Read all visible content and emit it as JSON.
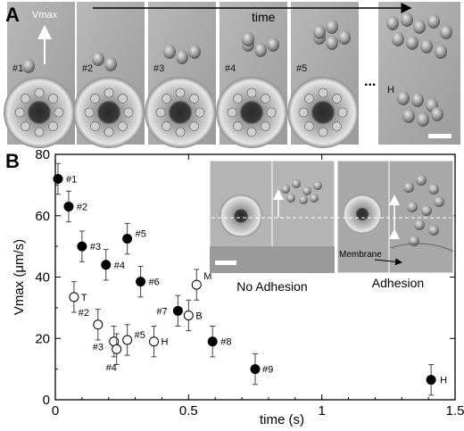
{
  "panels": {
    "a": "A",
    "b": "B"
  },
  "strip": {
    "vmax_label": "Vmax",
    "time_label": "time",
    "frames": [
      "#1",
      "#2",
      "#3",
      "#4",
      "#5",
      "H"
    ],
    "ellipsis": "..."
  },
  "inset": {
    "no_adhesion": "No Adhesion",
    "adhesion": "Adhesion",
    "membrane": "Membrane"
  },
  "chart_data": {
    "type": "scatter",
    "xlabel": "time (s)",
    "ylabel": "Vmax (μm/s)",
    "xlim": [
      0,
      1.5
    ],
    "ylim": [
      0,
      80
    ],
    "xticks": [
      "0",
      "0.5",
      "1",
      "1.5"
    ],
    "yticks": [
      "0",
      "20",
      "40",
      "60",
      "80"
    ],
    "series": [
      {
        "marker": "filled-circle",
        "color": "#000000",
        "points": [
          {
            "label": "#1",
            "x": 0.01,
            "y": 72,
            "err": 5
          },
          {
            "label": "#2",
            "x": 0.05,
            "y": 63,
            "err": 5
          },
          {
            "label": "#3",
            "x": 0.1,
            "y": 50,
            "err": 5
          },
          {
            "label": "#4",
            "x": 0.19,
            "y": 44,
            "err": 5
          },
          {
            "label": "#5",
            "x": 0.27,
            "y": 52.5,
            "err": 5
          },
          {
            "label": "#6",
            "x": 0.32,
            "y": 38.5,
            "err": 5
          },
          {
            "label": "#7",
            "x": 0.46,
            "y": 29,
            "err": 5
          },
          {
            "label": "#8",
            "x": 0.59,
            "y": 19,
            "err": 5
          },
          {
            "label": "#9",
            "x": 0.75,
            "y": 10,
            "err": 5
          },
          {
            "label": "H",
            "x": 1.41,
            "y": 6.5,
            "err": 5
          }
        ]
      },
      {
        "marker": "open-circle",
        "color": "#000000",
        "points": [
          {
            "label": "T",
            "x": 0.07,
            "y": 33.5,
            "err": 5
          },
          {
            "label": "#2",
            "x": 0.16,
            "y": 24.5,
            "err": 5
          },
          {
            "label": "#3",
            "x": 0.22,
            "y": 19,
            "err": 5
          },
          {
            "label": "#4",
            "x": 0.23,
            "y": 16.5,
            "err": 5
          },
          {
            "label": "#5",
            "x": 0.27,
            "y": 19.5,
            "err": 5
          },
          {
            "label": "H",
            "x": 0.37,
            "y": 19,
            "err": 5
          },
          {
            "label": "B",
            "x": 0.5,
            "y": 27.5,
            "err": 5
          },
          {
            "label": "M",
            "x": 0.53,
            "y": 37.5,
            "err": 5
          }
        ]
      }
    ]
  }
}
